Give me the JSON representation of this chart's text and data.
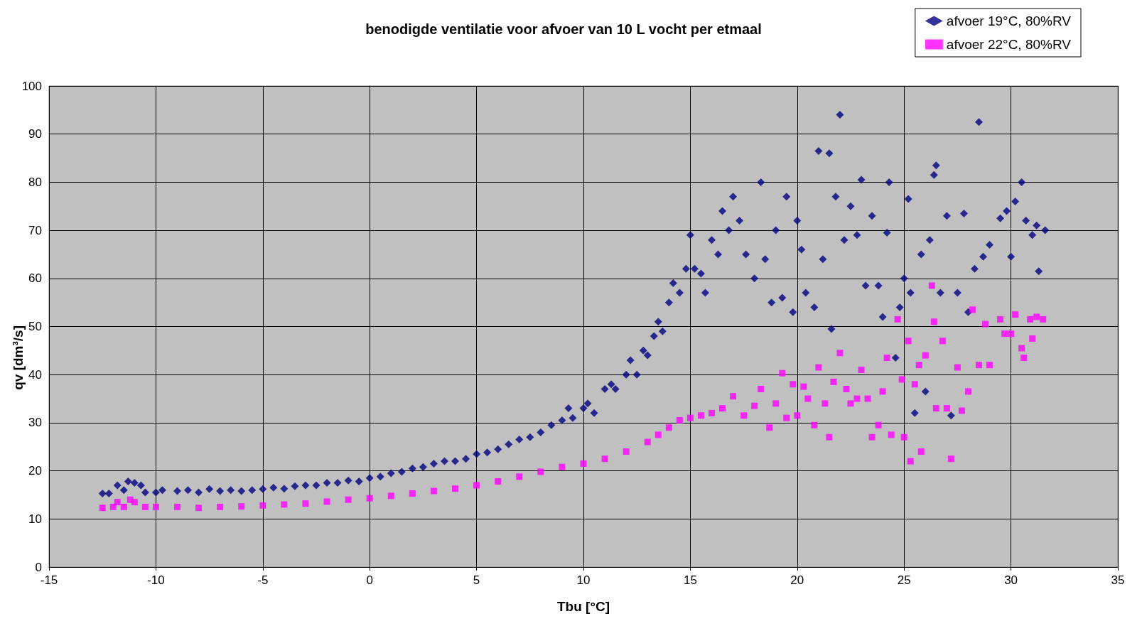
{
  "chart_data": {
    "type": "scatter",
    "title": "benodigde ventilatie voor afvoer van 10 L vocht per etmaal",
    "xlabel": "Tbu [°C]",
    "ylabel": "qv [dm³/s]",
    "xlim": [
      -15,
      35
    ],
    "xticks": [
      -15,
      -10,
      -5,
      0,
      5,
      10,
      15,
      20,
      25,
      30,
      35
    ],
    "ylim": [
      0,
      100
    ],
    "yticks": [
      0,
      10,
      20,
      30,
      40,
      50,
      60,
      70,
      80,
      90,
      100
    ],
    "grid": true,
    "legend": "top right",
    "series": [
      {
        "name": "afvoer 19°C, 80%RV",
        "color": "#000080",
        "marker": "diamond",
        "x": [
          -12.5,
          -12.2,
          -11.8,
          -11.5,
          -11.3,
          -11,
          -10.7,
          -10.5,
          -10,
          -9.7,
          -9,
          -8.5,
          -8,
          -7.5,
          -7,
          -6.5,
          -6,
          -5.5,
          -5,
          -4.5,
          -4,
          -3.5,
          -3,
          -2.5,
          -2,
          -1.5,
          -1,
          -0.5,
          0,
          0.5,
          1,
          1.5,
          2,
          2.5,
          3,
          3.5,
          4,
          4.5,
          5,
          5.5,
          6,
          6.5,
          7,
          7.5,
          8,
          8.5,
          9,
          9.3,
          9.5,
          10,
          10.2,
          10.5,
          11,
          11.3,
          11.5,
          12,
          12.2,
          12.5,
          12.8,
          13,
          13.3,
          13.5,
          13.7,
          14,
          14.2,
          14.5,
          14.8,
          15,
          15.2,
          15.5,
          15.7,
          16,
          16.3,
          16.5,
          16.8,
          17,
          17.3,
          17.6,
          18,
          18.3,
          18.5,
          18.8,
          19,
          19.3,
          19.5,
          19.8,
          20,
          20.2,
          20.4,
          20.8,
          21,
          21.2,
          21.5,
          21.6,
          21.8,
          22,
          22.2,
          22.5,
          22.8,
          23,
          23.2,
          23.5,
          23.8,
          24,
          24.2,
          24.3,
          24.6,
          24.8,
          25,
          25.2,
          25.3,
          25.5,
          25.8,
          26,
          26.2,
          26.4,
          26.5,
          26.7,
          27,
          27.2,
          27.5,
          27.8,
          28,
          28.3,
          28.5,
          28.7,
          29,
          29.5,
          29.8,
          30,
          30.2,
          30.5,
          30.7,
          31,
          31.2,
          31.3,
          31.6
        ],
        "values": [
          15.3,
          15.3,
          17,
          16,
          17.8,
          17.5,
          17,
          15.5,
          15.5,
          16,
          15.8,
          16,
          15.5,
          16.2,
          15.8,
          16,
          15.8,
          16,
          16.2,
          16.5,
          16.3,
          16.8,
          17,
          17,
          17.5,
          17.5,
          18,
          17.8,
          18.5,
          18.8,
          19.5,
          19.8,
          20.5,
          20.8,
          21.5,
          22,
          22,
          22.5,
          23.5,
          23.8,
          24.5,
          25.5,
          26.5,
          27,
          28,
          29.5,
          30.5,
          33,
          31,
          33,
          34,
          32,
          37,
          38,
          37,
          40,
          43,
          40,
          45,
          44,
          48,
          51,
          49,
          55,
          59,
          57,
          62,
          69,
          62,
          61,
          57,
          68,
          65,
          74,
          70,
          77,
          72,
          65,
          60,
          80,
          64,
          55,
          70,
          56,
          77,
          53,
          72,
          66,
          57,
          54,
          86.5,
          64,
          86,
          49.5,
          77,
          94,
          68,
          75,
          69,
          80.5,
          58.5,
          73,
          58.5,
          52,
          69.5,
          80,
          43.5,
          54,
          60,
          76.5,
          57,
          32,
          65,
          36.5,
          68,
          81.5,
          83.5,
          57,
          73,
          31.5,
          57,
          73.5,
          53,
          62,
          92.5,
          64.5,
          67,
          72.5,
          74,
          64.5,
          76,
          80,
          72,
          69,
          71,
          61.5,
          70
        ]
      },
      {
        "name": "afvoer 22°C, 80%RV",
        "color": "#ff00ff",
        "marker": "square",
        "x": [
          -12.5,
          -12,
          -11.8,
          -11.5,
          -11.2,
          -11,
          -10.5,
          -10,
          -9,
          -8,
          -7,
          -6,
          -5,
          -4,
          -3,
          -2,
          -1,
          0,
          1,
          2,
          3,
          4,
          5,
          6,
          7,
          8,
          9,
          10,
          11,
          12,
          13,
          13.5,
          14,
          14.5,
          15,
          15.5,
          16,
          16.5,
          17,
          17.5,
          18,
          18.3,
          18.7,
          19,
          19.3,
          19.5,
          19.8,
          20,
          20.3,
          20.5,
          20.8,
          21,
          21.3,
          21.5,
          21.7,
          22,
          22.3,
          22.5,
          22.8,
          23,
          23.3,
          23.5,
          23.8,
          24,
          24.2,
          24.4,
          24.7,
          24.9,
          25,
          25.2,
          25.3,
          25.5,
          25.7,
          25.8,
          26,
          26.3,
          26.4,
          26.5,
          26.8,
          27,
          27.2,
          27.5,
          27.7,
          28,
          28.2,
          28.5,
          28.8,
          29,
          29.5,
          29.7,
          30,
          30.2,
          30.5,
          30.6,
          30.9,
          31,
          31.2,
          31.5
        ],
        "values": [
          12.3,
          12.5,
          13.5,
          12.5,
          14,
          13.5,
          12.5,
          12.5,
          12.5,
          12.3,
          12.5,
          12.6,
          12.8,
          13,
          13.2,
          13.6,
          14,
          14.3,
          14.8,
          15.3,
          15.8,
          16.3,
          17,
          17.8,
          18.8,
          19.8,
          20.8,
          21.5,
          22.5,
          24,
          26,
          27.5,
          29,
          30.5,
          31,
          31.5,
          32,
          33,
          35.5,
          31.5,
          33.5,
          37,
          29,
          34,
          40.3,
          31,
          38,
          31.5,
          37.5,
          35,
          29.5,
          41.5,
          34,
          27,
          38.5,
          44.5,
          37,
          34,
          35,
          41,
          35,
          27,
          29.5,
          36.5,
          43.5,
          27.5,
          51.5,
          39,
          27,
          47,
          22,
          38,
          42,
          24,
          44,
          58.5,
          51,
          33,
          47,
          33,
          22.5,
          41.5,
          32.5,
          36.5,
          53.5,
          42,
          50.5,
          42,
          51.5,
          48.5,
          48.5,
          52.5,
          45.5,
          43.5,
          51.5,
          47.5,
          52,
          51.5
        ]
      }
    ]
  }
}
